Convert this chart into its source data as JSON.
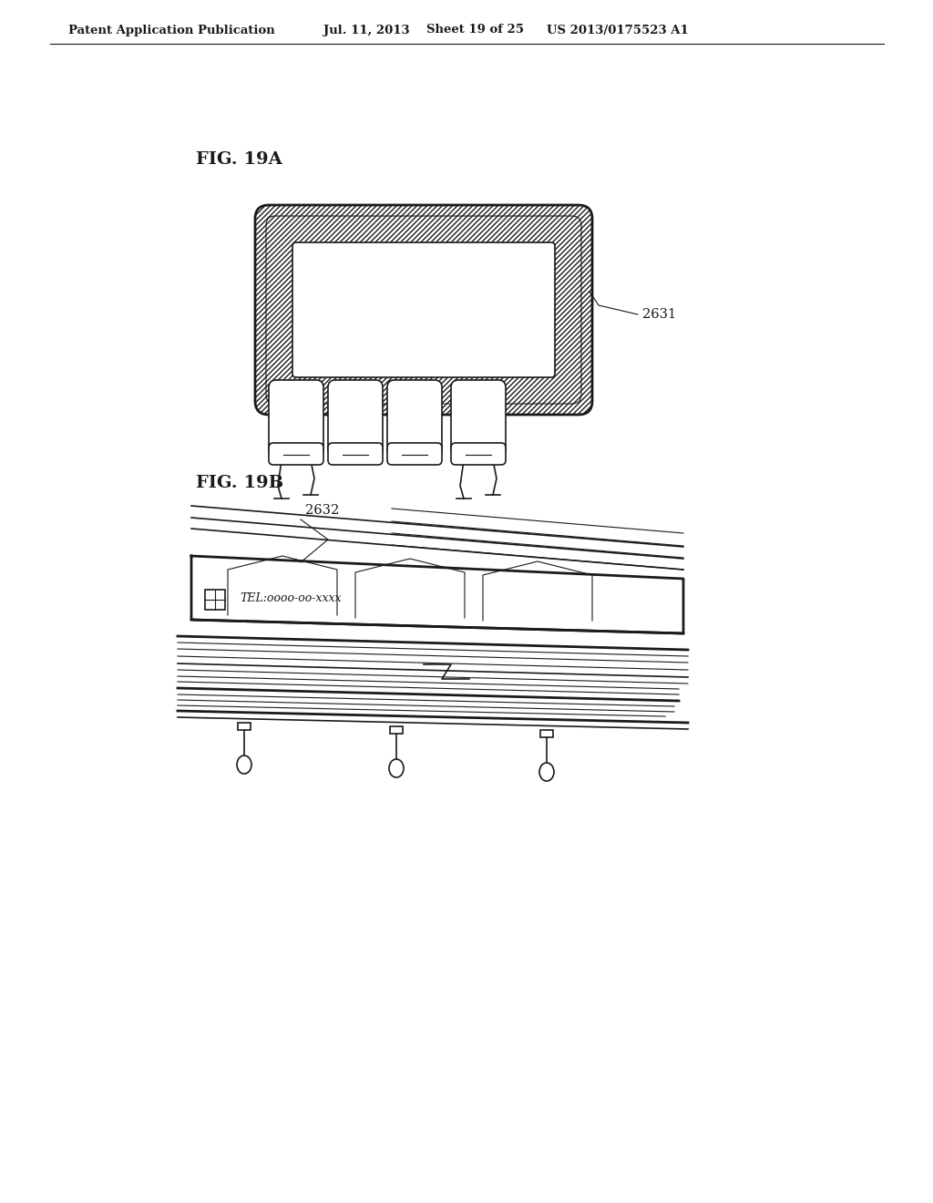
{
  "bg_color": "#ffffff",
  "line_color": "#1a1a1a",
  "header_text": "Patent Application Publication",
  "header_date": "Jul. 11, 2013",
  "header_sheet": "Sheet 19 of 25",
  "header_patent": "US 2013/0175523 A1",
  "fig19a_label": "FIG. 19A",
  "fig19b_label": "FIG. 19B",
  "label_2631": "2631",
  "label_2632": "2632",
  "tel_text": "TEL:oooo-oo-xxxx"
}
